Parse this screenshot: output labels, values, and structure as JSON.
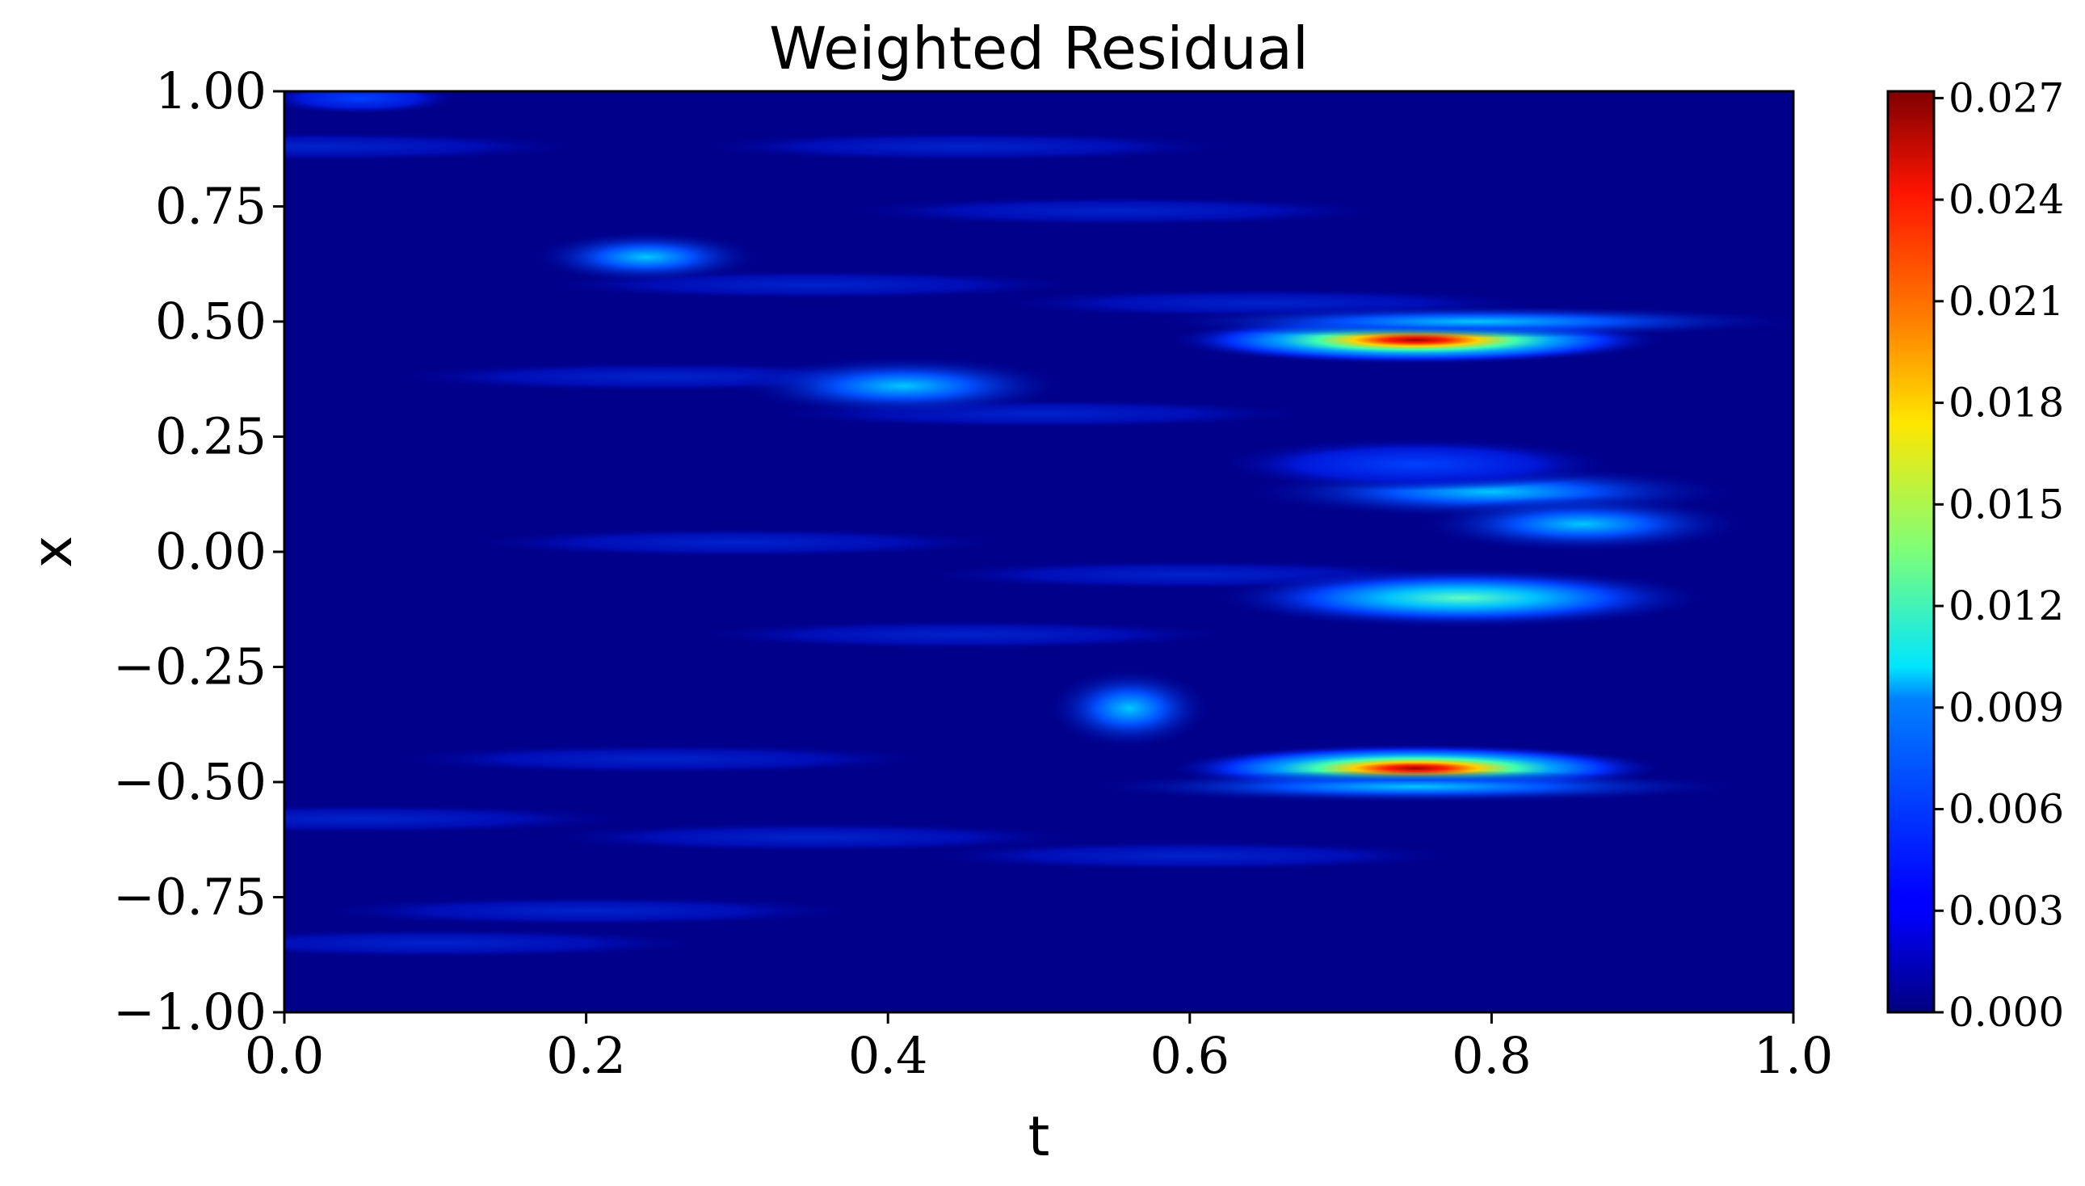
{
  "chart_data": {
    "type": "heatmap",
    "title": "Weighted Residual",
    "xlabel": "t",
    "ylabel": "x",
    "xlim": [
      0.0,
      1.0
    ],
    "ylim": [
      -1.0,
      1.0
    ],
    "x_ticks": [
      0.0,
      0.2,
      0.4,
      0.6,
      0.8,
      1.0
    ],
    "x_tick_labels": [
      "0.0",
      "0.2",
      "0.4",
      "0.6",
      "0.8",
      "1.0"
    ],
    "y_ticks": [
      -1.0,
      -0.75,
      -0.5,
      -0.25,
      0.0,
      0.25,
      0.5,
      0.75,
      1.0
    ],
    "y_tick_labels": [
      "−1.00",
      "−0.75",
      "−0.50",
      "−0.25",
      "0.00",
      "0.25",
      "0.50",
      "0.75",
      "1.00"
    ],
    "colormap": "jet",
    "colorbar": {
      "min": 0.0,
      "max": 0.0272,
      "ticks": [
        0.0,
        0.003,
        0.006,
        0.009,
        0.012,
        0.015,
        0.018,
        0.021,
        0.024,
        0.027
      ],
      "tick_labels": [
        "0.000",
        "0.003",
        "0.006",
        "0.009",
        "0.012",
        "0.015",
        "0.018",
        "0.021",
        "0.024",
        "0.027"
      ]
    },
    "features": [
      {
        "t": 0.75,
        "x": 0.46,
        "value": 0.027,
        "t_width": 0.15,
        "x_width": 0.012
      },
      {
        "t": 0.75,
        "x": -0.47,
        "value": 0.027,
        "t_width": 0.15,
        "x_width": 0.012
      },
      {
        "t": 0.79,
        "x": 0.5,
        "value": 0.007,
        "t_width": 0.2,
        "x_width": 0.008
      },
      {
        "t": 0.75,
        "x": -0.51,
        "value": 0.007,
        "t_width": 0.2,
        "x_width": 0.008
      },
      {
        "t": 0.78,
        "x": -0.1,
        "value": 0.01,
        "t_width": 0.15,
        "x_width": 0.015
      },
      {
        "t": 0.8,
        "x": 0.13,
        "value": 0.008,
        "t_width": 0.15,
        "x_width": 0.013
      },
      {
        "t": 0.75,
        "x": 0.19,
        "value": 0.004,
        "t_width": 0.12,
        "x_width": 0.013
      },
      {
        "t": 0.86,
        "x": 0.06,
        "value": 0.005,
        "t_width": 0.1,
        "x_width": 0.014
      },
      {
        "t": 0.24,
        "x": 0.64,
        "value": 0.008,
        "t_width": 0.07,
        "x_width": 0.013
      },
      {
        "t": 0.41,
        "x": 0.36,
        "value": 0.006,
        "t_width": 0.1,
        "x_width": 0.015
      },
      {
        "t": 0.56,
        "x": -0.34,
        "value": 0.006,
        "t_width": 0.05,
        "x_width": 0.02
      },
      {
        "t": 0.05,
        "x": 0.985,
        "value": 0.004,
        "t_width": 0.06,
        "x_width": 0.008
      }
    ]
  }
}
